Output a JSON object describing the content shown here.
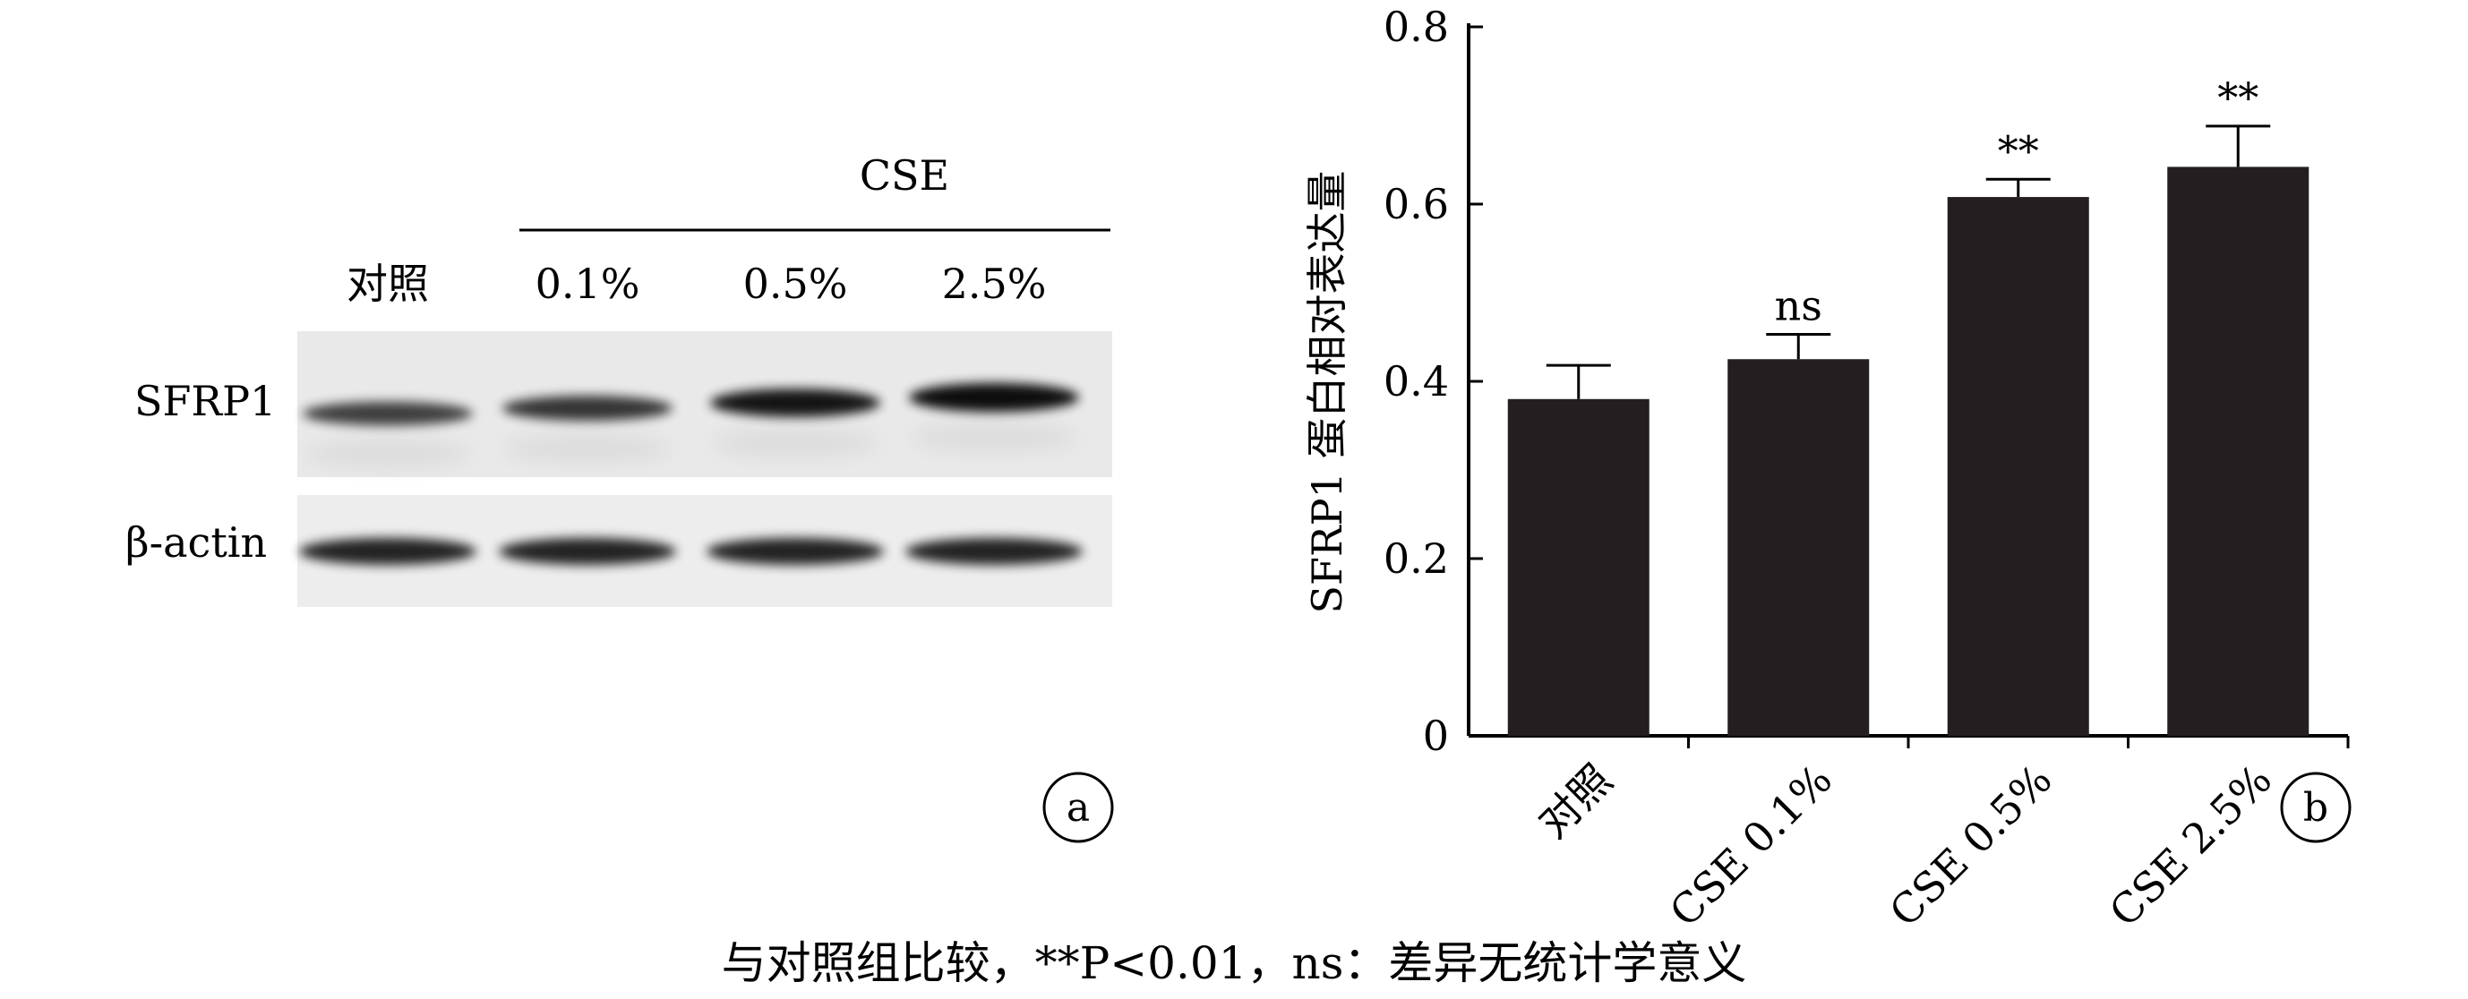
{
  "panel_a": {
    "group_label": "CSE",
    "lane_labels": [
      "对照",
      "0.1%",
      "0.5%",
      "2.5%"
    ],
    "row_labels": [
      "SFRP1",
      "β-actin"
    ],
    "panel_tag": "a",
    "sfrp1_relative_intensity": [
      0.55,
      0.62,
      0.85,
      0.9
    ],
    "actin_relative_intensity": [
      1,
      1,
      1,
      1
    ]
  },
  "panel_b": {
    "panel_tag": "b"
  },
  "chart_data": {
    "type": "bar",
    "categories": [
      "对照",
      "CSE 0.1%",
      "CSE 0.5%",
      "CSE 2.5%"
    ],
    "values": [
      0.38,
      0.425,
      0.608,
      0.642
    ],
    "error": [
      0.038,
      0.028,
      0.02,
      0.046
    ],
    "annotations": [
      "",
      "ns",
      "**",
      "**"
    ],
    "ylabel": "SFRP1 蛋白相对表达量",
    "xlabel": "",
    "ylim": [
      0,
      0.8
    ],
    "yticks": [
      0,
      0.2,
      0.4,
      0.6,
      0.8
    ],
    "ytick_labels": [
      "0",
      "0.2",
      "0.4",
      "0.6",
      "0.8"
    ],
    "bar_color": "#231f20"
  },
  "caption": "与对照组比较，**P<0.01，ns：差异无统计学意义"
}
